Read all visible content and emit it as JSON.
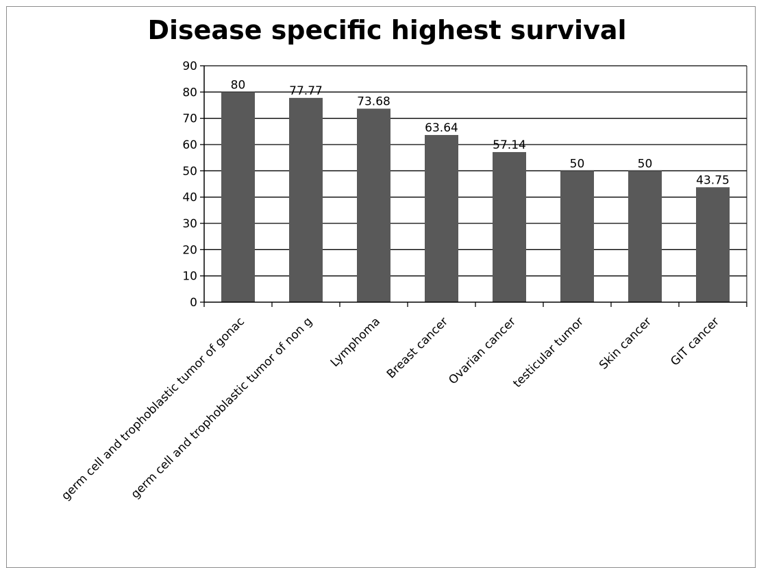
{
  "chart_data": {
    "type": "bar",
    "title": "Disease specific highest survival",
    "xlabel": "",
    "ylabel": "",
    "categories": [
      "germ cell and trophoblastic tumor of gonac",
      "germ cell and trophoblastic tumor of non g",
      "Lymphoma",
      "Breast cancer",
      "Ovarian cancer",
      "testicular tumor",
      "Skin cancer",
      "GIT cancer"
    ],
    "values": [
      80,
      77.77,
      73.68,
      63.64,
      57.14,
      50,
      50,
      43.75
    ],
    "data_labels": [
      "80",
      "77.77",
      "73.68",
      "63.64",
      "57.14",
      "50",
      "50",
      "43.75"
    ],
    "ylim": [
      0,
      90
    ],
    "y_ticks": [
      0,
      10,
      20,
      30,
      40,
      50,
      60,
      70,
      80,
      90
    ],
    "grid": true,
    "legend": "none",
    "colors": {
      "bar": "#595959",
      "grid": "#000000",
      "axis": "#000000"
    }
  }
}
